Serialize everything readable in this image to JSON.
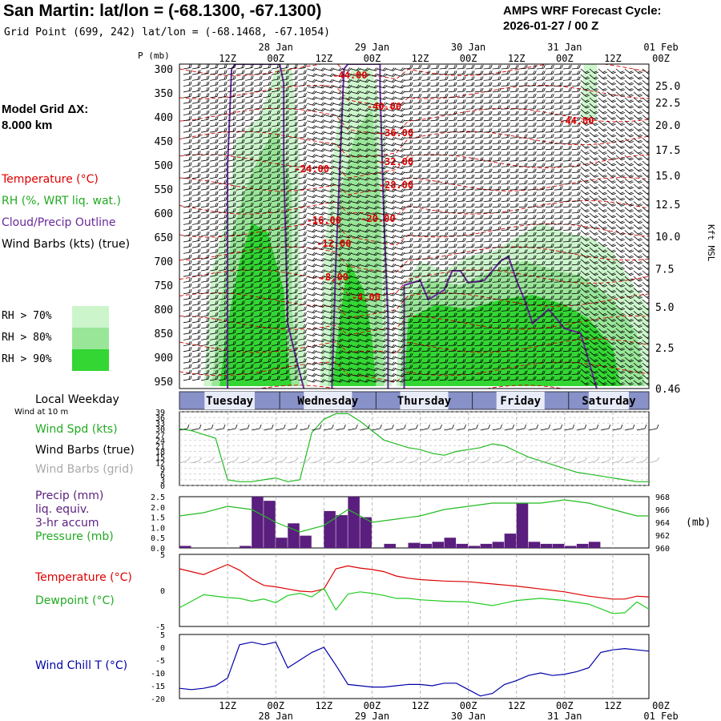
{
  "header": {
    "title": "San Martin:  lat/lon = (-68.1300, -67.1300)",
    "subtitle": "Grid Point (699, 242) lat/lon = (-68.1468, -67.1054)",
    "cycle_line1": "AMPS WRF Forecast Cycle:",
    "cycle_line2": "2026-01-27 / 00  Z",
    "grid_line1": "Model Grid ΔX:",
    "grid_line2": " 8.000 km"
  },
  "colors": {
    "temperature": "#dd0000",
    "rh": "#22bb22",
    "cloud": "#6a2a9a",
    "wind": "#000000",
    "wind_grid": "#aaaaaa",
    "precip": "#5a1e7e",
    "pressure": "#22bb22",
    "dewpoint": "#22cc22",
    "windchill": "#0000aa",
    "rh70": "#ccf5cc",
    "rh80": "#99e699",
    "rh90": "#33d633"
  },
  "legend": {
    "temperature": "Temperature (°C)",
    "rh": "RH (%, WRT liq. wat.)",
    "cloud": "Cloud/Precip Outline",
    "wind": "Wind Barbs (kts) (true)",
    "rh70": "RH > 70%",
    "rh80": "RH > 80%",
    "rh90": "RH > 90%",
    "weekday_title": "Local Weekday",
    "wind10m": "Wind at 10 m",
    "wind_spd": "Wind Spd (kts)",
    "wind_true": "Wind Barbs (true)",
    "wind_grid": "Wind Barbs (grid)",
    "precip1": "Precip (mm)",
    "precip2": "liq. equiv.",
    "precip3": "3-hr accum",
    "pressure": "Pressure (mb)",
    "pressure_unit": "(mb)",
    "temp2": "Temperature (°C)",
    "dewpoint": "Dewpoint (°C)",
    "windchill": "Wind Chill T (°C)",
    "p_axis": "P (mb)",
    "kft_axis": "Kft MSL"
  },
  "time_axis": {
    "hour_labels": [
      "12Z",
      "00Z",
      "12Z",
      "00Z",
      "12Z",
      "00Z",
      "12Z",
      "00Z",
      "12Z",
      "00Z"
    ],
    "hour_positions_h": [
      12,
      24,
      36,
      48,
      60,
      72,
      84,
      96,
      108,
      120
    ],
    "date_labels": [
      "28 Jan",
      "29 Jan",
      "30 Jan",
      "31 Jan",
      "01 Feb"
    ],
    "date_positions_h": [
      24,
      48,
      72,
      96,
      120
    ],
    "hmin": 0,
    "hmax": 117
  },
  "weekdays": [
    {
      "label": "Tuesday",
      "start_h": 0,
      "end_h": 25
    },
    {
      "label": "Wednesday",
      "start_h": 25,
      "end_h": 49
    },
    {
      "label": "Thursday",
      "start_h": 49,
      "end_h": 73
    },
    {
      "label": "Friday",
      "start_h": 73,
      "end_h": 97
    },
    {
      "label": "Saturday",
      "start_h": 97,
      "end_h": 117
    }
  ],
  "chart_data": [
    {
      "type": "heatmap",
      "name": "cross-section",
      "x_unit": "forecast hour",
      "pressure_levels": [
        300,
        350,
        400,
        450,
        500,
        550,
        600,
        650,
        700,
        750,
        800,
        850,
        900,
        950
      ],
      "ylim": [
        950,
        300
      ],
      "height_axis_kft": [
        25.0,
        22.5,
        20.0,
        17.5,
        15.0,
        12.5,
        10.0,
        7.5,
        5.0,
        2.5,
        0.46
      ],
      "height_axis_pressure": [
        335,
        370,
        417,
        468,
        522,
        582,
        648,
        716,
        795,
        880,
        965
      ],
      "temperature_labels": [
        {
          "text": "-44.00",
          "x_h": 42.5,
          "p": 320
        },
        {
          "text": "-40.00",
          "x_h": 51,
          "p": 385
        },
        {
          "text": "-44.00",
          "x_h": 99,
          "p": 415
        },
        {
          "text": "-36.00",
          "x_h": 54,
          "p": 440
        },
        {
          "text": "-32.00",
          "x_h": 54,
          "p": 500
        },
        {
          "text": "-24.00",
          "x_h": 33,
          "p": 515
        },
        {
          "text": "-28.00",
          "x_h": 54,
          "p": 548
        },
        {
          "text": "-16.00",
          "x_h": 36,
          "p": 622
        },
        {
          "text": "-20.00",
          "x_h": 49.5,
          "p": 618
        },
        {
          "text": "-12.00",
          "x_h": 38.5,
          "p": 670
        },
        {
          "text": "-8.00",
          "x_h": 38.5,
          "p": 740
        },
        {
          "text": "-4.00",
          "x_h": 46.5,
          "p": 782
        }
      ],
      "cloud_outline_regions_h": [
        [
          12,
          31
        ],
        [
          38,
          52
        ],
        [
          56,
          104
        ]
      ]
    },
    {
      "type": "line",
      "name": "wind-speed",
      "ylabel": "Wind Spd (kts)",
      "y_ticks": [
        0,
        3,
        6,
        9,
        12,
        15,
        18,
        21,
        24,
        27,
        30,
        33,
        36,
        39
      ],
      "ylim": [
        0,
        39
      ],
      "x": [
        0,
        3,
        6,
        9,
        12,
        15,
        18,
        21,
        24,
        27,
        30,
        33,
        36,
        39,
        42,
        45,
        48,
        51,
        54,
        57,
        60,
        63,
        66,
        69,
        72,
        75,
        78,
        81,
        84,
        87,
        90,
        93,
        96,
        99,
        102,
        105,
        108,
        111,
        114,
        117
      ],
      "values": [
        30,
        29,
        27,
        25,
        3,
        2,
        2,
        3,
        4,
        2,
        3,
        28,
        35,
        38,
        38,
        34,
        29,
        24,
        22,
        20,
        19,
        17,
        16,
        18,
        19,
        20,
        22,
        21,
        18,
        15,
        13,
        11,
        9,
        7,
        6,
        5,
        4,
        3,
        2,
        2
      ]
    },
    {
      "type": "bar",
      "name": "precip",
      "ylabel": "Precip (mm)",
      "y_ticks": [
        0.0,
        0.5,
        1.0,
        1.5,
        2.0,
        2.5
      ],
      "ylim": [
        0,
        2.5
      ],
      "x_start": [
        0,
        15,
        18,
        21,
        24,
        27,
        30,
        36,
        39,
        42,
        45,
        51,
        57,
        60,
        63,
        66,
        69,
        72,
        75,
        78,
        81,
        84,
        87,
        90,
        93,
        96,
        99,
        102
      ],
      "values": [
        0.1,
        0.1,
        2.5,
        2.3,
        0.5,
        1.2,
        0.6,
        1.8,
        1.6,
        2.5,
        1.5,
        0.2,
        0.25,
        0.2,
        0.3,
        0.5,
        0.2,
        0.1,
        0.2,
        0.3,
        0.7,
        2.2,
        0.3,
        0.2,
        0.2,
        0.1,
        0.2,
        0.3
      ],
      "bar_width_h": 3
    },
    {
      "type": "line",
      "name": "pressure",
      "ylabel": "Pressure (mb)",
      "y_ticks": [
        960,
        962,
        964,
        966,
        968
      ],
      "ylim": [
        960,
        968
      ],
      "x": [
        0,
        6,
        12,
        18,
        24,
        30,
        36,
        42,
        48,
        54,
        60,
        66,
        72,
        78,
        84,
        90,
        96,
        102,
        108,
        114,
        117
      ],
      "values": [
        965,
        965.5,
        966.5,
        966,
        964,
        962.5,
        963.5,
        966,
        964,
        964.5,
        965,
        966,
        966.5,
        967,
        967,
        967,
        967.5,
        967,
        966,
        965,
        965
      ]
    },
    {
      "type": "line",
      "name": "temperature-dewpoint",
      "y_ticks": [
        -5,
        0,
        5
      ],
      "ylim": [
        -5,
        5
      ],
      "series": [
        {
          "name": "Temperature (°C)",
          "x": [
            0,
            6,
            12,
            15,
            18,
            21,
            24,
            27,
            30,
            33,
            36,
            39,
            42,
            45,
            48,
            51,
            54,
            57,
            60,
            66,
            72,
            78,
            84,
            90,
            96,
            102,
            108,
            111,
            114,
            117
          ],
          "values": [
            3,
            2.2,
            3.6,
            2.8,
            1.6,
            0.7,
            0.5,
            0.2,
            -0.1,
            -0.2,
            0.2,
            3.0,
            3.4,
            3.1,
            2.9,
            2.6,
            2.0,
            1.7,
            1.5,
            1.3,
            1.2,
            0.9,
            0.6,
            0.2,
            -0.2,
            -0.8,
            -1.2,
            -1.2,
            -0.8,
            -0.9
          ]
        },
        {
          "name": "Dewpoint (°C)",
          "x": [
            0,
            6,
            12,
            15,
            18,
            21,
            24,
            27,
            30,
            33,
            36,
            39,
            42,
            45,
            48,
            51,
            54,
            57,
            60,
            66,
            72,
            78,
            84,
            90,
            96,
            102,
            108,
            111,
            114,
            117
          ],
          "values": [
            -2.4,
            -0.6,
            -1.0,
            -1.1,
            -1.5,
            -1.2,
            -1.7,
            -0.7,
            -0.4,
            -0.9,
            0.3,
            -2.7,
            -0.5,
            -0.2,
            -0.4,
            -0.7,
            -1.1,
            -1.1,
            -1.3,
            -1.5,
            -1.6,
            -2.1,
            -1.4,
            -1.1,
            -1.4,
            -1.9,
            -3.2,
            -3.1,
            -1.6,
            -2.6
          ]
        }
      ]
    },
    {
      "type": "line",
      "name": "wind-chill",
      "ylabel": "Wind Chill T (°C)",
      "y_ticks": [
        -20,
        -15,
        -10,
        -5,
        0,
        5
      ],
      "ylim": [
        -20,
        5
      ],
      "x": [
        0,
        3,
        6,
        9,
        12,
        15,
        18,
        21,
        24,
        27,
        30,
        33,
        36,
        39,
        42,
        45,
        48,
        51,
        54,
        57,
        60,
        63,
        66,
        69,
        72,
        75,
        78,
        81,
        84,
        87,
        90,
        93,
        96,
        99,
        102,
        105,
        108,
        111,
        114,
        117
      ],
      "values": [
        -16,
        -16.5,
        -16,
        -15,
        -12,
        1,
        2,
        1,
        2,
        -8,
        -5,
        -2,
        0,
        -7,
        -14.5,
        -15,
        -15.5,
        -15.5,
        -15,
        -14.5,
        -14.5,
        -15,
        -14,
        -14,
        -16.5,
        -19,
        -18,
        -14.5,
        -13,
        -11,
        -10,
        -11,
        -10.5,
        -9.5,
        -8,
        -2,
        -1,
        -0.5,
        -1,
        -1.5
      ]
    }
  ]
}
